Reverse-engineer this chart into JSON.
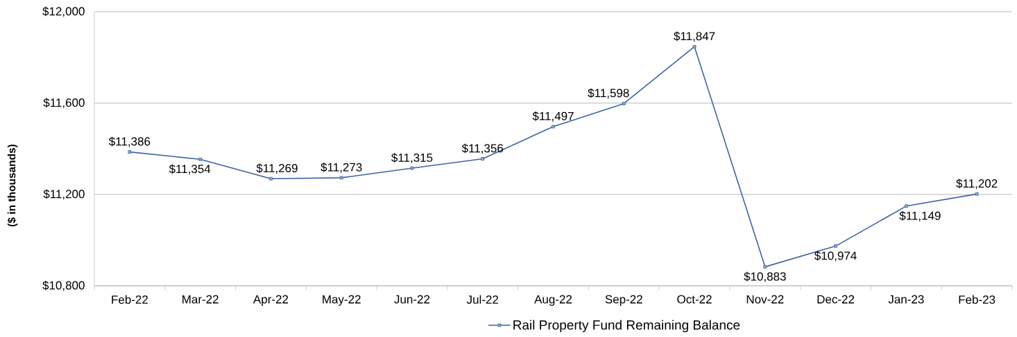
{
  "chart_data": {
    "type": "line",
    "ylabel": "($ in thousands)",
    "categories": [
      "Feb-22",
      "Mar-22",
      "Apr-22",
      "May-22",
      "Jun-22",
      "Jul-22",
      "Aug-22",
      "Sep-22",
      "Oct-22",
      "Nov-22",
      "Dec-22",
      "Jan-23",
      "Feb-23"
    ],
    "series": [
      {
        "name": "Rail Property Fund Remaining Balance",
        "color": "#3b64a0",
        "values": [
          11386,
          11354,
          11269,
          11273,
          11315,
          11356,
          11497,
          11598,
          11847,
          10883,
          10974,
          11149,
          11202
        ],
        "value_labels": [
          "$11,386",
          "$11,354",
          "$11,269",
          "$11,273",
          "$11,315",
          "$11,356",
          "$11,497",
          "$11,598",
          "$11,847",
          "$10,883",
          "$10,974",
          "$11,149",
          "$11,202"
        ]
      }
    ],
    "ylim": [
      10800,
      12000
    ],
    "yticks": [
      {
        "value": 10800,
        "label": "$10,800"
      },
      {
        "value": 11200,
        "label": "$11,200"
      },
      {
        "value": 11600,
        "label": "$11,600"
      },
      {
        "value": 12000,
        "label": "$12,000"
      }
    ],
    "grid": "y",
    "legend": "bottom",
    "marker": "square",
    "line_style": "solid"
  }
}
